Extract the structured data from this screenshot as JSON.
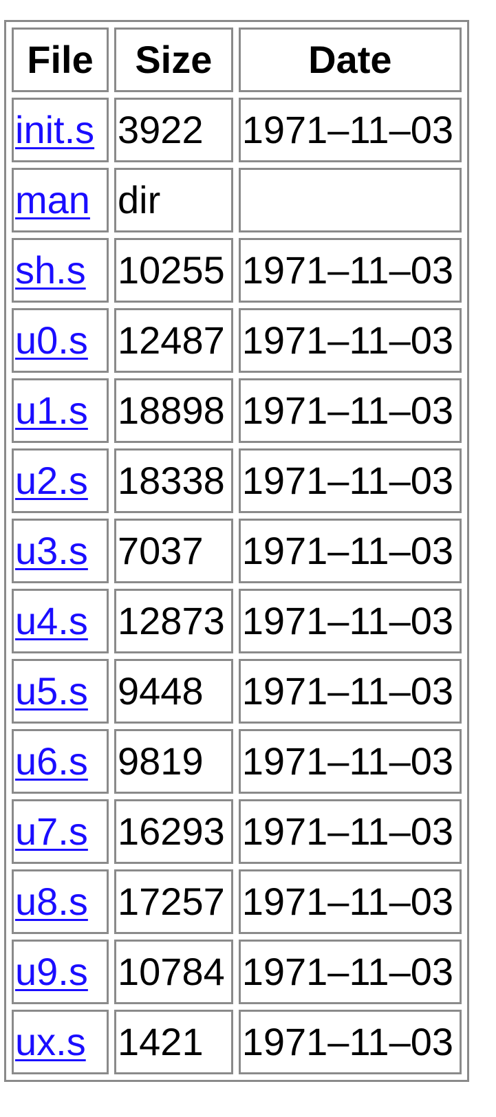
{
  "table": {
    "headers": {
      "file": "File",
      "size": "Size",
      "date": "Date"
    },
    "rows": [
      {
        "file": "init.s",
        "size": "3922",
        "date": "1971–11–03"
      },
      {
        "file": "man",
        "size": "dir",
        "date": ""
      },
      {
        "file": "sh.s",
        "size": "10255",
        "date": "1971–11–03"
      },
      {
        "file": "u0.s",
        "size": "12487",
        "date": "1971–11–03"
      },
      {
        "file": "u1.s",
        "size": "18898",
        "date": "1971–11–03"
      },
      {
        "file": "u2.s",
        "size": "18338",
        "date": "1971–11–03"
      },
      {
        "file": "u3.s",
        "size": "7037",
        "date": "1971–11–03"
      },
      {
        "file": "u4.s",
        "size": "12873",
        "date": "1971–11–03"
      },
      {
        "file": "u5.s",
        "size": "9448",
        "date": "1971–11–03"
      },
      {
        "file": "u6.s",
        "size": "9819",
        "date": "1971–11–03"
      },
      {
        "file": "u7.s",
        "size": "16293",
        "date": "1971–11–03"
      },
      {
        "file": "u8.s",
        "size": "17257",
        "date": "1971–11–03"
      },
      {
        "file": "u9.s",
        "size": "10784",
        "date": "1971–11–03"
      },
      {
        "file": "ux.s",
        "size": "1421",
        "date": "1971–11–03"
      }
    ]
  },
  "colors": {
    "link": "#1a0dff",
    "border": "#8a8a8a",
    "text": "#000000",
    "background": "#ffffff"
  }
}
